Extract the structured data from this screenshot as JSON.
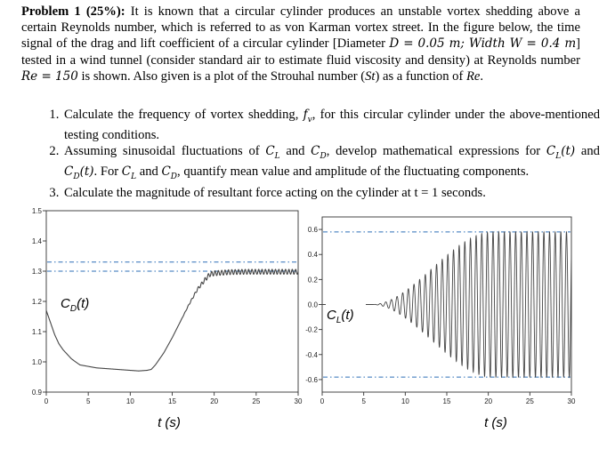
{
  "problem": {
    "heading": "Problem 1",
    "weight": "(25%):",
    "intro_1": "It is known that a circular cylinder produces an unstable vortex shedding above a certain Reynolds number, which is referred to as von Karman vortex street. In the figure below, the time signal of the drag and lift coefficient of a circular cylinder [Diameter ",
    "diam_sym": "D",
    "diam_val": " = 0.05 ",
    "diam_unit": "m",
    "width_lbl": "; Width ",
    "width_sym": "W",
    "width_val": " = 0.4 ",
    "width_unit": "m",
    "intro_2": "] tested in a wind tunnel (consider standard air to estimate fluid viscosity and density) at Reynolds number ",
    "re_sym": "Re",
    "re_val": " = 150",
    "intro_3": " is shown. Also given is a plot of the Strouhal number (",
    "st_sym": "St",
    "intro_4": ") as a function of ",
    "re_sym2": "Re",
    "intro_end": ".",
    "tasks": [
      {
        "a": "Calculate the frequency of vortex shedding, ",
        "sym": "f",
        "sub": "v",
        "b": ", for this circular cylinder under the above-mentioned testing conditions."
      },
      {
        "a": "Assuming sinusoidal fluctuations of ",
        "b": " and ",
        "c": ", develop mathematical expressions for ",
        "d": " and ",
        "e": ". For ",
        "f": " and ",
        "g": ", quantify mean value and amplitude of the fluctuating components."
      },
      {
        "a": "Calculate the magnitude of resultant force acting on the cylinder at t = 1 seconds."
      }
    ],
    "sym_cl": "C",
    "sub_l": "L",
    "sym_cd": "C",
    "sub_d": "D",
    "t_arg": "(t)"
  },
  "chart_data": [
    {
      "type": "line",
      "series_label": "C_D(t)",
      "x": [
        0,
        0.5,
        1,
        1.5,
        2,
        3,
        4,
        5,
        6,
        7,
        8,
        9,
        10,
        11,
        12,
        12.5,
        13,
        14,
        15,
        16,
        17,
        18,
        19,
        19.5,
        20,
        21,
        22,
        24,
        26,
        28,
        30
      ],
      "y": [
        1.17,
        1.13,
        1.09,
        1.06,
        1.04,
        1.01,
        0.99,
        0.985,
        0.98,
        0.978,
        0.976,
        0.974,
        0.972,
        0.97,
        0.972,
        0.975,
        0.99,
        1.03,
        1.08,
        1.135,
        1.19,
        1.24,
        1.275,
        1.29,
        1.293,
        1.295,
        1.297,
        1.298,
        1.298,
        1.298,
        1.298
      ],
      "oscillation": {
        "start": 15.5,
        "full": 20,
        "amplitude": 0.008,
        "period": 0.4
      },
      "reference_lines": [
        1.33,
        1.3
      ],
      "xlim": [
        0,
        30
      ],
      "ylim": [
        0.9,
        1.5
      ],
      "xticks": [
        0,
        5,
        10,
        15,
        20,
        25,
        30
      ],
      "yticks": [
        "0.9",
        "1.0",
        "1.1",
        "1.2",
        "1.3",
        "1.4",
        "1.5"
      ],
      "xlabel": "t (s)",
      "grid": false
    },
    {
      "type": "line",
      "series_label": "C_L(t)",
      "signal": {
        "mean": 0,
        "amplitude": 0.58,
        "period": 0.68,
        "growth_start": 6,
        "growth_full": 20.5
      },
      "reference_lines": [
        0.58,
        -0.58
      ],
      "xlim": [
        0,
        30
      ],
      "ylim": [
        -0.7,
        0.7
      ],
      "xticks": [
        0,
        5,
        10,
        15,
        20,
        25,
        30
      ],
      "yticks": [
        "-0.6",
        "-0.4",
        "-0.2",
        "0.0",
        "0.2",
        "0.4",
        "0.6"
      ],
      "xlabel": "t (s)",
      "grid": false
    }
  ]
}
